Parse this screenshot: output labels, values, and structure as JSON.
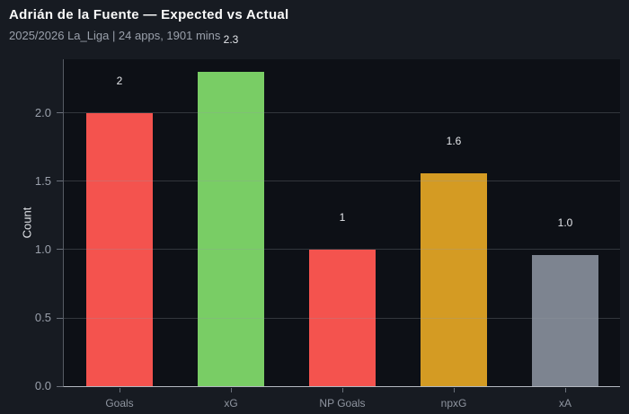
{
  "header": {
    "title": "Adrián de la Fuente — Expected vs Actual",
    "subtitle": "2025/2026 La_Liga | 24 apps, 1901 mins"
  },
  "colors": {
    "figure_bg": "#171b22",
    "plot_bg": "#0d1016",
    "title": "#fafafa",
    "subtitle": "#9aa0ab",
    "axis_line": "#b3b8c0",
    "left_spine": "#565b64",
    "tick_label": "#9aa0ab",
    "x_tick_label": "#8f95a0",
    "bar_label": "#e4e6ea",
    "gridline": "rgba(148,153,163,0.28)",
    "red": "#f4534e",
    "green": "#79cd65",
    "orange": "#d49b23",
    "gray": "#7d8490"
  },
  "chart_data": {
    "type": "bar",
    "title": "Adrián de la Fuente — Expected vs Actual",
    "subtitle": "2025/2026 La_Liga | 24 apps, 1901 mins",
    "categories": [
      "Goals",
      "xG",
      "NP Goals",
      "npxG",
      "xA"
    ],
    "values": [
      2.0,
      2.3,
      1.0,
      1.56,
      0.96
    ],
    "bar_labels": [
      "2",
      "2.3",
      "1",
      "1.6",
      "1.0"
    ],
    "bar_colors": [
      "#f4534e",
      "#79cd65",
      "#f4534e",
      "#d49b23",
      "#7d8490"
    ],
    "xlabel": "",
    "ylabel": "Count",
    "ylim": [
      0,
      2.401
    ],
    "yticks": [
      0.0,
      0.5,
      1.0,
      1.5,
      2.0
    ],
    "ytick_labels": [
      "0.0",
      "0.5",
      "1.0",
      "1.5",
      "2.0"
    ],
    "grid": "horizontal gridlines at y ticks, drawn over bars",
    "legend": "none"
  }
}
